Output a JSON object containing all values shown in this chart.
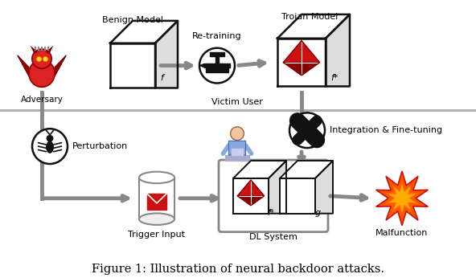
{
  "title": "Figure 1: Illustration of neural backdoor attacks.",
  "bg_color": "#ffffff",
  "arrow_color": "#888888",
  "line_color": "#999999",
  "sep_color": "#aaaaaa",
  "text_color": "#000000",
  "red_color": "#cc1111",
  "dark_red": "#880000",
  "cube_outline": "#111111",
  "labels": {
    "adversary": "Adversary",
    "benign_model": "Benign Model",
    "trojan_model": "Trojan Model",
    "retraining": "Re-training",
    "victim_user": "Victim User",
    "perturbation": "Perturbation",
    "integration": "Integration & Fine-tuning",
    "trigger_input": "Trigger Input",
    "dl_system": "DL System",
    "malfunction": "Malfunction",
    "f": "f",
    "fstar": "f*",
    "fstar2": "f*",
    "g": "g"
  },
  "fig_width": 5.92,
  "fig_height": 3.46
}
